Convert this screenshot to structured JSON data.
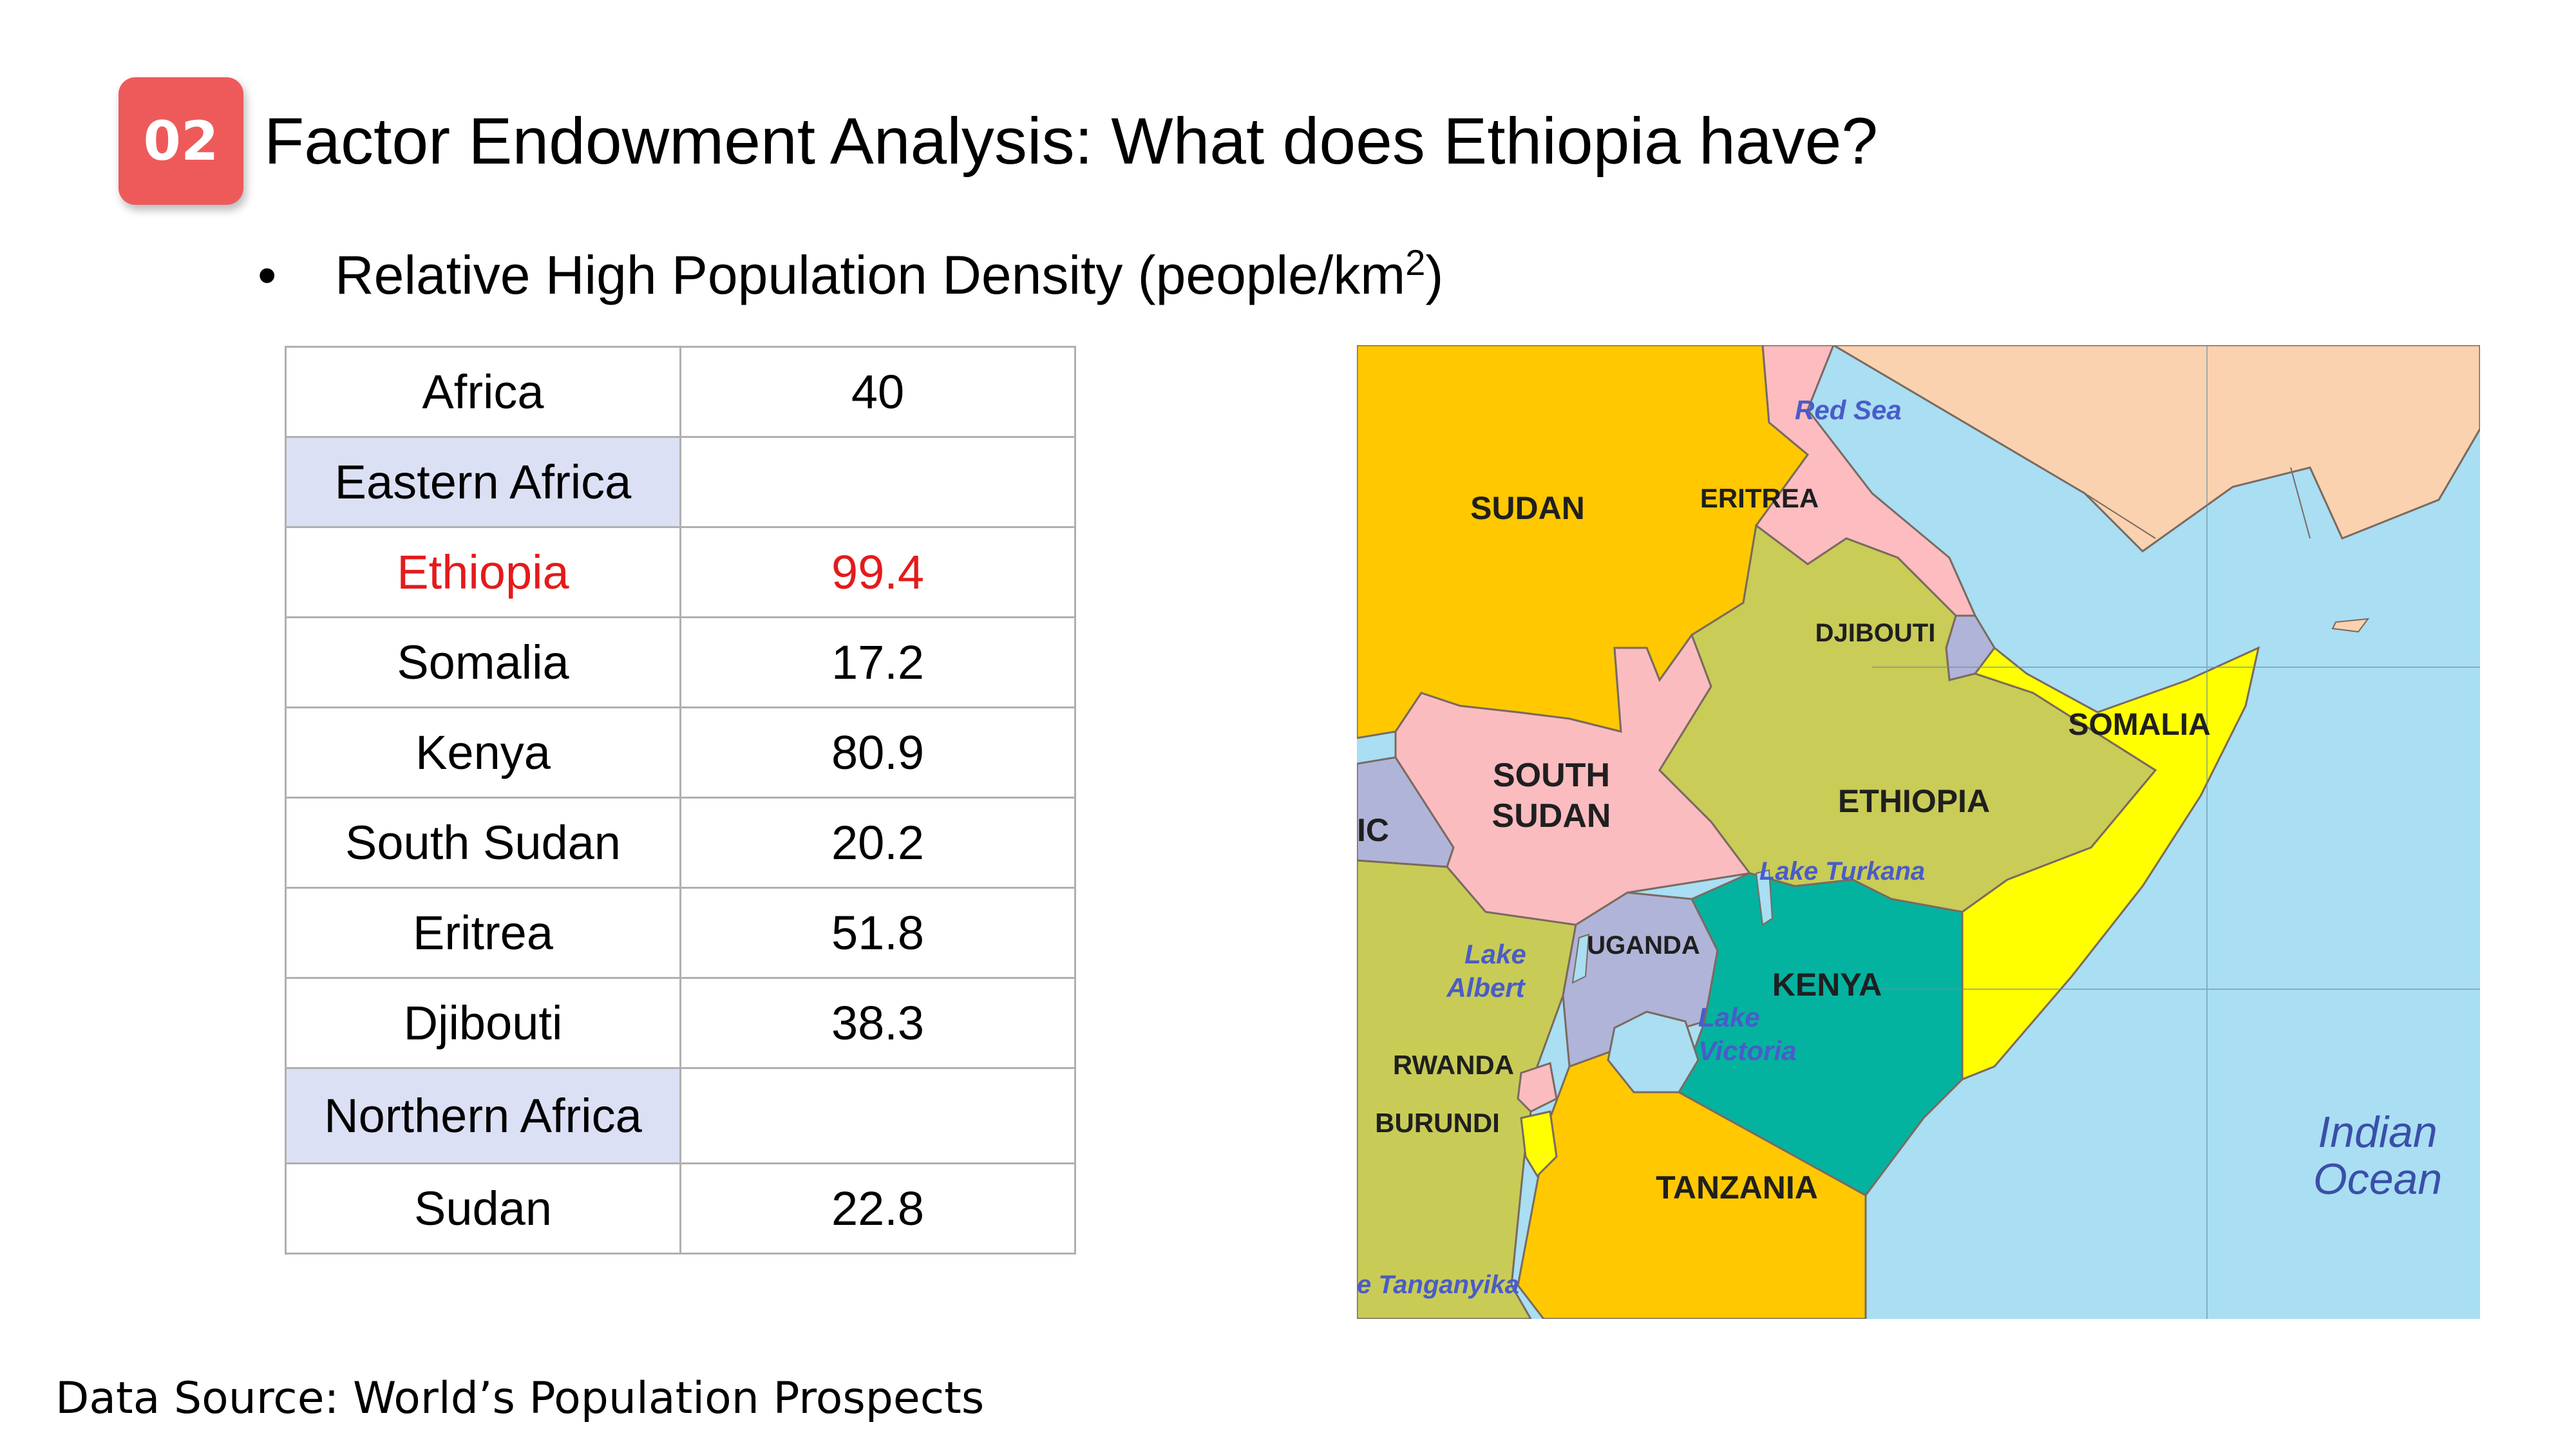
{
  "slide": {
    "number": "02",
    "title": "Factor Endowment Analysis: What does Ethiopia have?",
    "bullet_symbol": "•",
    "bullet_text": "Relative High Population Density (people/km",
    "bullet_superscript": "2",
    "bullet_suffix": ")",
    "source": "Data Source: World’s Population Prospects"
  },
  "table": {
    "rows": [
      {
        "name": "Africa",
        "value": "40",
        "type": "normal"
      },
      {
        "name": "Eastern Africa",
        "value": "",
        "type": "region"
      },
      {
        "name": "Ethiopia",
        "value": "99.4",
        "type": "highlight"
      },
      {
        "name": "Somalia",
        "value": "17.2",
        "type": "normal"
      },
      {
        "name": "Kenya",
        "value": "80.9",
        "type": "normal"
      },
      {
        "name": "South Sudan",
        "value": "20.2",
        "type": "normal"
      },
      {
        "name": "Eritrea",
        "value": "51.8",
        "type": "normal"
      },
      {
        "name": "Djibouti",
        "value": "38.3",
        "type": "normal"
      },
      {
        "name": "Northern Africa",
        "value": "",
        "type": "region"
      },
      {
        "name": "Sudan",
        "value": "22.8",
        "type": "normal"
      }
    ]
  },
  "map": {
    "countries": {
      "sudan": "SUDAN",
      "eritrea": "ERITREA",
      "djibouti": "DJIBOUTI",
      "somalia": "SOMALIA",
      "south_sudan_1": "SOUTH",
      "south_sudan_2": "SUDAN",
      "ethiopia": "ETHIOPIA",
      "uganda": "UGANDA",
      "kenya": "KENYA",
      "rwanda": "RWANDA",
      "burundi": "BURUNDI",
      "tanzania": "TANZANIA",
      "car_fragment": "IC"
    },
    "water": {
      "red_sea": "Red Sea",
      "lake_turkana": "Lake Turkana",
      "lake_albert_1": "Lake",
      "lake_albert_2": "Albert",
      "lake_victoria_1": "Lake",
      "lake_victoria_2": "Victoria",
      "lake_tanganyika": "e Tanganyika",
      "indian_ocean_1": "Indian",
      "indian_ocean_2": "Ocean"
    },
    "colors": {
      "sea": "#a9def3",
      "sudan": "#ffc800",
      "arabia": "#fad2b0",
      "eritrea": "#fcbcc0",
      "ethiopia": "#c9cc56",
      "somalia": "#ffff00",
      "south_sudan": "#fbbcc0",
      "kenya": "#04b2a0",
      "uganda": "#b0b4d8",
      "tanzania": "#ffc800",
      "drc": "#c8cc56"
    }
  }
}
